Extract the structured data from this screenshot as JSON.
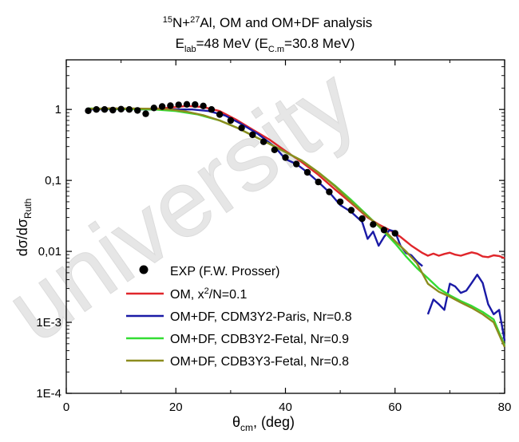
{
  "chart_data": {
    "type": "line",
    "title": {
      "line1": {
        "a_mass": "15",
        "a_el": "N+",
        "b_mass": "27",
        "b_el": "Al,  OM and OM+DF analysis"
      },
      "line2": {
        "e": "E",
        "lab": "lab",
        "energy": "=48 MeV (E",
        "cm": "C.m",
        "cm_energy": "=30.8 MeV)"
      }
    },
    "xlabel": {
      "theta": "θ",
      "sub": "cm",
      "rest": ", (deg)"
    },
    "ylabel": {
      "main": "dσ/dσ",
      "sub": "Ruth"
    },
    "watermark": "university",
    "xlim": [
      0,
      80
    ],
    "ylim": [
      0.0001,
      5
    ],
    "yscale": "log",
    "xticks": [
      {
        "v": 0,
        "label": "0"
      },
      {
        "v": 20,
        "label": "20"
      },
      {
        "v": 40,
        "label": "40"
      },
      {
        "v": 60,
        "label": "60"
      },
      {
        "v": 80,
        "label": "80"
      }
    ],
    "yticks": [
      {
        "v": 1,
        "label": "1"
      },
      {
        "v": 0.1,
        "label": "0,1"
      },
      {
        "v": 0.01,
        "label": "0,01"
      },
      {
        "v": 0.001,
        "label": "1E-3"
      },
      {
        "v": 0.0001,
        "label": "1E-4"
      }
    ],
    "legend_position": "bottom-left",
    "legend": [
      {
        "label": "EXP (F.W. Prosser)",
        "marker": "dot",
        "color": "#000000"
      },
      {
        "label": "OM, x",
        "sup": "2",
        "tail": "/N=0.1",
        "marker": "line",
        "color": "#e0262b"
      },
      {
        "label": "OM+DF, CDM3Y2-Paris, Nr=0.8",
        "marker": "line",
        "color": "#1a1aa6"
      },
      {
        "label": "OM+DF, CDB3Y2-Fetal, Nr=0.9",
        "marker": "line",
        "color": "#33dd33"
      },
      {
        "label": "OM+DF, CDB3Y3-Fetal, Nr=0.8",
        "marker": "line",
        "color": "#8c8c1e"
      }
    ],
    "exp_points": [
      [
        4,
        0.96
      ],
      [
        5.5,
        1.0
      ],
      [
        7,
        1.0
      ],
      [
        8.5,
        0.98
      ],
      [
        10,
        1.01
      ],
      [
        11.5,
        1.0
      ],
      [
        13,
        0.97
      ],
      [
        14.5,
        0.87
      ],
      [
        16,
        1.05
      ],
      [
        17.5,
        1.1
      ],
      [
        19,
        1.13
      ],
      [
        20.5,
        1.16
      ],
      [
        22,
        1.18
      ],
      [
        23.5,
        1.17
      ],
      [
        25,
        1.12
      ],
      [
        26.5,
        1.0
      ],
      [
        28,
        0.85
      ],
      [
        30,
        0.7
      ],
      [
        32,
        0.55
      ],
      [
        34,
        0.44
      ],
      [
        36,
        0.35
      ],
      [
        38,
        0.27
      ],
      [
        40,
        0.21
      ],
      [
        42,
        0.17
      ],
      [
        44,
        0.13
      ],
      [
        46,
        0.095
      ],
      [
        48,
        0.069
      ],
      [
        50,
        0.05
      ],
      [
        52,
        0.038
      ],
      [
        54,
        0.029
      ],
      [
        56,
        0.024
      ],
      [
        58,
        0.02
      ],
      [
        60,
        0.018
      ]
    ],
    "series": [
      {
        "name": "OM, x2/N=0.1",
        "color": "#e0262b",
        "points": [
          [
            4,
            1.02
          ],
          [
            8,
            1.03
          ],
          [
            12,
            1.02
          ],
          [
            16,
            1.02
          ],
          [
            19,
            1.06
          ],
          [
            22,
            1.12
          ],
          [
            25,
            1.08
          ],
          [
            28,
            0.95
          ],
          [
            31,
            0.72
          ],
          [
            34,
            0.52
          ],
          [
            37,
            0.38
          ],
          [
            40,
            0.26
          ],
          [
            43,
            0.18
          ],
          [
            46,
            0.12
          ],
          [
            49,
            0.075
          ],
          [
            52,
            0.048
          ],
          [
            55,
            0.03
          ],
          [
            57,
            0.024
          ],
          [
            59,
            0.02
          ],
          [
            61,
            0.016
          ],
          [
            63,
            0.012
          ],
          [
            65,
            0.0095
          ],
          [
            66,
            0.0087
          ],
          [
            67,
            0.0093
          ],
          [
            68,
            0.0087
          ],
          [
            69,
            0.0092
          ],
          [
            70,
            0.0096
          ],
          [
            71,
            0.009
          ],
          [
            72,
            0.0087
          ],
          [
            73,
            0.0092
          ],
          [
            74,
            0.0097
          ],
          [
            75,
            0.0093
          ],
          [
            76,
            0.0085
          ],
          [
            77,
            0.0083
          ],
          [
            78,
            0.0088
          ],
          [
            79,
            0.0086
          ],
          [
            80,
            0.008
          ]
        ]
      },
      {
        "name": "OM+DF, CDM3Y2-Paris, Nr=0.8",
        "color": "#1a1aa6",
        "points": [
          [
            4,
            1.0
          ],
          [
            10,
            1.01
          ],
          [
            16,
            1.0
          ],
          [
            20,
            1.0
          ],
          [
            23,
            1.0
          ],
          [
            26,
            0.95
          ],
          [
            29,
            0.82
          ],
          [
            32,
            0.62
          ],
          [
            35,
            0.45
          ],
          [
            38,
            0.3
          ],
          [
            40,
            0.2
          ],
          [
            42,
            0.17
          ],
          [
            44,
            0.13
          ],
          [
            46,
            0.095
          ],
          [
            48,
            0.068
          ],
          [
            50,
            0.045
          ],
          [
            52,
            0.036
          ],
          [
            54,
            0.026
          ],
          [
            55,
            0.015
          ],
          [
            56,
            0.019
          ],
          [
            57,
            0.012
          ],
          [
            58,
            0.016
          ],
          [
            59,
            0.02
          ],
          [
            60,
            0.019
          ],
          [
            61,
            0.012
          ],
          [
            62,
            0.0095
          ],
          [
            63,
            0.0088
          ],
          [
            64,
            0.0072
          ],
          [
            65,
            0.0062
          ]
        ]
      },
      {
        "name": "OM+DF, CDM3Y2-Paris, Nr=0.8 (tail)",
        "color": "#1a1aa6",
        "points": [
          [
            66,
            0.0013
          ],
          [
            67,
            0.0021
          ],
          [
            68,
            0.0018
          ],
          [
            69,
            0.0015
          ],
          [
            70,
            0.0035
          ],
          [
            71,
            0.0032
          ],
          [
            72,
            0.0026
          ],
          [
            73,
            0.0028
          ],
          [
            74,
            0.0036
          ],
          [
            75,
            0.0047
          ],
          [
            76,
            0.0036
          ],
          [
            77,
            0.0018
          ],
          [
            78,
            0.0013
          ],
          [
            79,
            0.0015
          ],
          [
            80,
            0.00055
          ]
        ]
      },
      {
        "name": "OM+DF, CDB3Y2-Fetal, Nr=0.9",
        "color": "#33dd33",
        "points": [
          [
            4,
            1.03
          ],
          [
            8,
            1.02
          ],
          [
            12,
            1.01
          ],
          [
            16,
            1.0
          ],
          [
            20,
            0.95
          ],
          [
            24,
            0.85
          ],
          [
            28,
            0.7
          ],
          [
            31,
            0.56
          ],
          [
            34,
            0.43
          ],
          [
            37,
            0.33
          ],
          [
            40,
            0.25
          ],
          [
            43,
            0.19
          ],
          [
            46,
            0.13
          ],
          [
            49,
            0.085
          ],
          [
            52,
            0.053
          ],
          [
            55,
            0.032
          ],
          [
            58,
            0.019
          ],
          [
            60,
            0.013
          ],
          [
            62,
            0.0085
          ],
          [
            64,
            0.0058
          ],
          [
            66,
            0.0042
          ],
          [
            68,
            0.003
          ],
          [
            70,
            0.0024
          ],
          [
            72,
            0.002
          ],
          [
            74,
            0.0017
          ],
          [
            76,
            0.0014
          ],
          [
            78,
            0.0011
          ],
          [
            80,
            0.00047
          ]
        ]
      },
      {
        "name": "OM+DF, CDB3Y3-Fetal, Nr=0.8",
        "color": "#8c8c1e",
        "points": [
          [
            4,
            1.02
          ],
          [
            8,
            1.03
          ],
          [
            12,
            1.03
          ],
          [
            16,
            1.02
          ],
          [
            19,
            1.0
          ],
          [
            22,
            0.93
          ],
          [
            25,
            0.83
          ],
          [
            28,
            0.7
          ],
          [
            31,
            0.56
          ],
          [
            34,
            0.43
          ],
          [
            37,
            0.33
          ],
          [
            40,
            0.25
          ],
          [
            43,
            0.19
          ],
          [
            46,
            0.13
          ],
          [
            49,
            0.083
          ],
          [
            52,
            0.05
          ],
          [
            55,
            0.031
          ],
          [
            58,
            0.02
          ],
          [
            60,
            0.014
          ],
          [
            62,
            0.01
          ],
          [
            64,
            0.0068
          ],
          [
            66,
            0.0035
          ],
          [
            68,
            0.0027
          ],
          [
            70,
            0.0023
          ],
          [
            72,
            0.0019
          ],
          [
            74,
            0.0016
          ],
          [
            76,
            0.0013
          ],
          [
            78,
            0.001
          ],
          [
            80,
            0.00045
          ]
        ]
      }
    ]
  }
}
